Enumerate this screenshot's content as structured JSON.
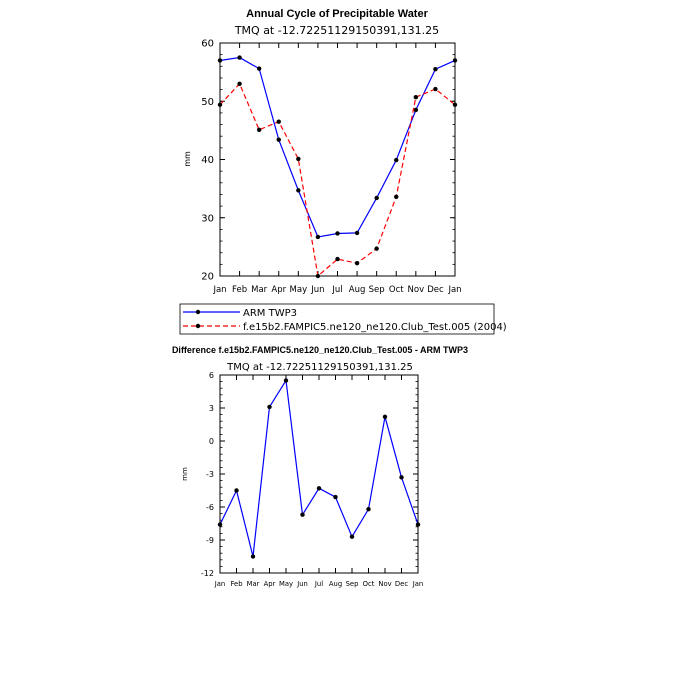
{
  "chart_data": [
    {
      "type": "line",
      "title": "Annual Cycle of Precipitable Water",
      "subtitle": "TMQ at -12.72251129150391,131.25",
      "xlabel": "",
      "ylabel": "mm",
      "categories": [
        "Jan",
        "Feb",
        "Mar",
        "Apr",
        "May",
        "Jun",
        "Jul",
        "Aug",
        "Sep",
        "Oct",
        "Nov",
        "Dec",
        "Jan"
      ],
      "ylim": [
        20,
        60
      ],
      "yticks": [
        20,
        30,
        40,
        50,
        60
      ],
      "series": [
        {
          "name": "ARM TWP3",
          "color": "#0000ff",
          "dash": "solid",
          "values": [
            57.0,
            57.5,
            55.6,
            43.4,
            34.7,
            26.7,
            27.3,
            27.4,
            33.4,
            39.9,
            48.5,
            55.5,
            57.0
          ]
        },
        {
          "name": "f.e15b2.FAMPIC5.ne120_ne120.Club_Test.005 (2004)",
          "color": "#ff0000",
          "dash": "dashed",
          "values": [
            49.4,
            53.0,
            45.1,
            46.5,
            40.1,
            20.0,
            22.9,
            22.2,
            24.7,
            33.6,
            50.7,
            52.1,
            49.4
          ]
        }
      ],
      "legend_position": "bottom"
    },
    {
      "type": "line",
      "title": "Difference f.e15b2.FAMPIC5.ne120_ne120.Club_Test.005 - ARM TWP3",
      "subtitle": "TMQ at -12.72251129150391,131.25",
      "xlabel": "",
      "ylabel": "mm",
      "categories": [
        "Jan",
        "Feb",
        "Mar",
        "Apr",
        "May",
        "Jun",
        "Jul",
        "Aug",
        "Sep",
        "Oct",
        "Nov",
        "Dec",
        "Jan"
      ],
      "ylim": [
        -12,
        6
      ],
      "yticks": [
        -12,
        -9,
        -6,
        -3,
        0,
        3,
        6
      ],
      "series": [
        {
          "name": "Difference",
          "color": "#0000ff",
          "dash": "solid",
          "values": [
            -7.6,
            -4.5,
            -10.5,
            3.1,
            5.5,
            -6.7,
            -4.3,
            -5.1,
            -8.7,
            -6.2,
            2.2,
            -3.3,
            -7.6
          ]
        }
      ]
    }
  ]
}
